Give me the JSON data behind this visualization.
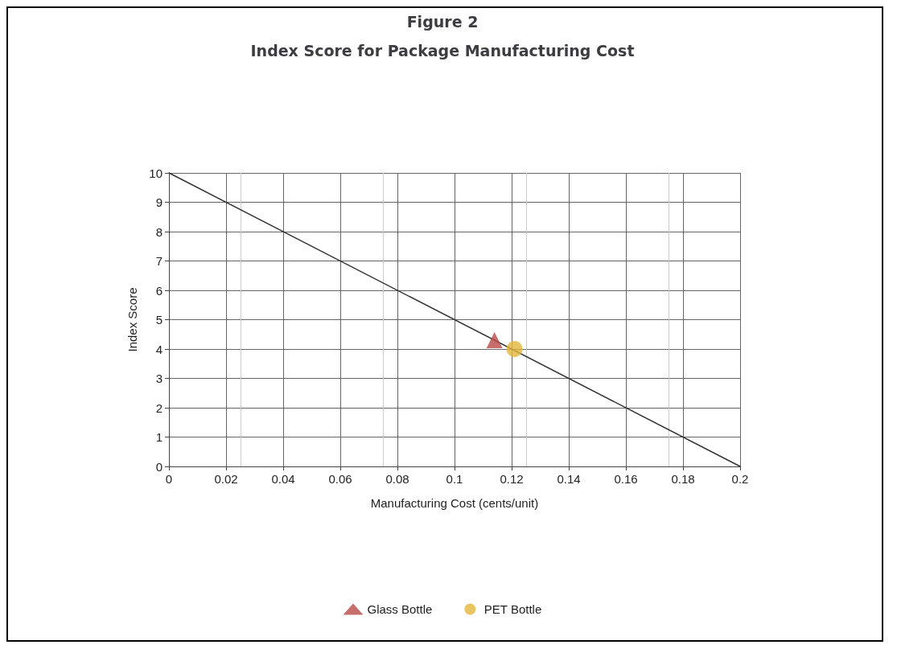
{
  "chart_data": {
    "type": "scatter",
    "title": "Figure 2",
    "subtitle": "Index Score for Package Manufacturing Cost",
    "xlabel": "Manufacturing Cost (cents/unit)",
    "ylabel": "Index Score",
    "xlim": [
      0,
      0.2
    ],
    "xticks": [
      0,
      0.02,
      0.04,
      0.06,
      0.08,
      0.1,
      0.12,
      0.14,
      0.16,
      0.18,
      0.2
    ],
    "ylim": [
      0,
      10
    ],
    "yticks": [
      0,
      1,
      2,
      3,
      4,
      5,
      6,
      7,
      8,
      9,
      10
    ],
    "grid": true,
    "legend": "bottom",
    "series": [
      {
        "type": "line",
        "color": "#333333",
        "x": [
          0,
          0.2
        ],
        "values": [
          10,
          0
        ],
        "marker": "none"
      },
      {
        "name": "Glass Bottle",
        "color": "#b94a48",
        "x": [
          0.114
        ],
        "values": [
          4.3
        ],
        "marker": "triangle"
      },
      {
        "name": "PET Bottle",
        "color": "#e3b53c",
        "x": [
          0.121
        ],
        "values": [
          4
        ],
        "marker": "circle"
      }
    ]
  }
}
